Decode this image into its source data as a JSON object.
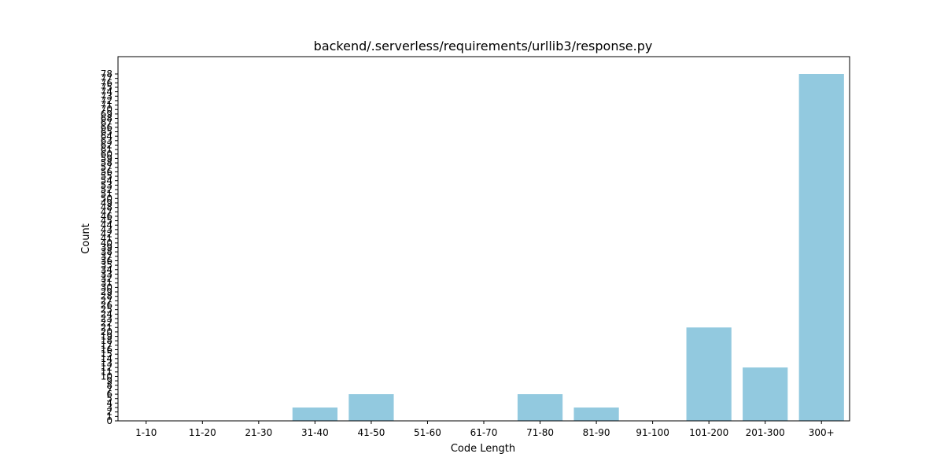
{
  "chart_data": {
    "type": "bar",
    "title": "backend/.serverless/requirements/urllib3/response.py",
    "xlabel": "Code Length",
    "ylabel": "Count",
    "categories": [
      "1-10",
      "11-20",
      "21-30",
      "31-40",
      "41-50",
      "51-60",
      "61-70",
      "71-80",
      "81-90",
      "91-100",
      "101-200",
      "201-300",
      "300+"
    ],
    "values": [
      0,
      0,
      0,
      3,
      6,
      0,
      0,
      6,
      3,
      0,
      21,
      12,
      78
    ],
    "ylim": [
      0,
      78
    ],
    "ytick_step": 1,
    "bar_color": "#92c9df",
    "grid": false
  }
}
